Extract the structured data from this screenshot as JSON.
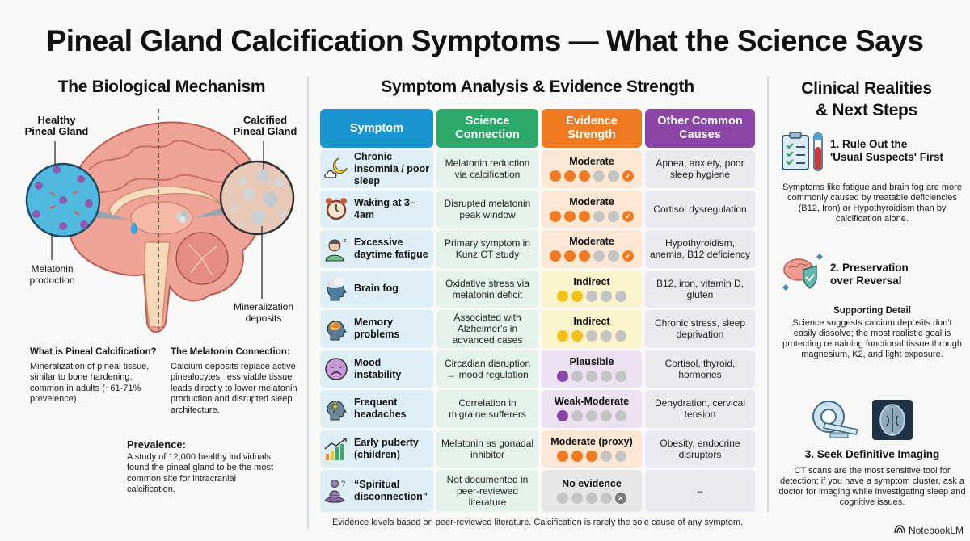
{
  "title": "Pineal Gland Calcification Symptoms — What the Science Says",
  "left": {
    "heading": "The Biological Mechanism",
    "diagram_labels": {
      "healthy": "Healthy\nPineal Gland",
      "healthy_line1": "Healthy",
      "healthy_line2": "Pineal Gland",
      "calcified_line1": "Calcified",
      "calcified_line2": "Pineal Gland",
      "melatonin_line1": "Melatonin",
      "melatonin_line2": "production",
      "mineral_line1": "Mineralization",
      "mineral_line2": "deposits"
    },
    "what_is": {
      "heading": "What is Pineal Calcification?",
      "text": "Mineralization of pineal tissue, similar to bone hardening, common in adults (~61-71% prevelence)."
    },
    "melatonin_connection": {
      "heading": "The Melatonin Connection:",
      "text": "Calcium deposits replace active pinealocytes; less viable tissue leads directly to lower melatonin production and disrupted sleep architecture."
    },
    "prevalence": {
      "heading": "Prevalence:",
      "text": "A study of 12,000 healthy individuals found the pineal gland to be the most common site for intracranial calcification."
    }
  },
  "middle": {
    "heading": "Symptom Analysis & Evidence Strength",
    "columns": [
      {
        "label": "Symptom",
        "color": "#1b95cf"
      },
      {
        "label": "Science Connection",
        "color": "#2aa96b"
      },
      {
        "label": "Evidence Strength",
        "color": "#ef7a22"
      },
      {
        "label": "Other Common Causes",
        "color": "#8a45a6"
      }
    ],
    "rows": [
      {
        "symptom": "Chronic insomnia / poor sleep",
        "icon": "moon-cloud-icon",
        "science": "Melatonin reduction via calcification",
        "evidence": "Moderate",
        "filled": 3,
        "total": 6,
        "end_mark": "check",
        "ev_color": "#ef7a22",
        "ev_bg": "#fbe7d4",
        "other": "Apnea, anxiety, poor sleep hygiene"
      },
      {
        "symptom": "Waking at 3–4am",
        "icon": "alarm-clock-icon",
        "science": "Disrupted melatonin peak window",
        "evidence": "Moderate",
        "filled": 3,
        "total": 6,
        "end_mark": "check",
        "ev_color": "#ef7a22",
        "ev_bg": "#fbe7d4",
        "other": "Cortisol dysregulation"
      },
      {
        "symptom": "Excessive daytime fatigue",
        "icon": "tired-person-icon",
        "science": "Primary symptom in Kunz CT study",
        "evidence": "Moderate",
        "filled": 3,
        "total": 6,
        "end_mark": "check",
        "ev_color": "#ef7a22",
        "ev_bg": "#fbe7d4",
        "other": "Hypothyroidism, anemia, B12 deficiency"
      },
      {
        "symptom": "Brain fog",
        "icon": "foggy-head-icon",
        "science": "Oxidative stress via melatonin deficit",
        "evidence": "Indirect",
        "filled": 2,
        "total": 5,
        "end_mark": "",
        "ev_color": "#f2c21b",
        "ev_bg": "#fbf3cc",
        "other": "B12, iron, vitamin D, gluten"
      },
      {
        "symptom": "Memory problems",
        "icon": "brain-head-icon",
        "science": "Associated with Alzheimer's in advanced cases",
        "evidence": "Indirect",
        "filled": 2,
        "total": 5,
        "end_mark": "",
        "ev_color": "#f2c21b",
        "ev_bg": "#fbf3cc",
        "other": "Chronic stress, sleep deprivation"
      },
      {
        "symptom": "Mood instability",
        "icon": "sad-face-icon",
        "science": "Circadian disruption → mood regulation",
        "evidence": "Plausible",
        "filled": 1,
        "total": 5,
        "end_mark": "",
        "ev_color": "#8a45a6",
        "ev_bg": "#ece0f1",
        "other": "Cortisol, thyroid, hormones"
      },
      {
        "symptom": "Frequent headaches",
        "icon": "headache-head-icon",
        "science": "Correlation in migraine sufferers",
        "evidence": "Weak-Moderate",
        "filled": 1,
        "total": 5,
        "end_mark": "",
        "ev_color": "#8a45a6",
        "ev_bg": "#ece0f1",
        "other": "Dehydration, cervical tension"
      },
      {
        "symptom": "Early puberty (children)",
        "icon": "growth-chart-icon",
        "science": "Melatonin as gonadal inhibitor",
        "evidence": "Moderate (proxy)",
        "filled": 3,
        "total": 5,
        "end_mark": "",
        "ev_color": "#ef7a22",
        "ev_bg": "#fbe7d4",
        "other": "Obesity, endocrine disruptors"
      },
      {
        "symptom": "“Spiritual disconnection”",
        "icon": "meditation-icon",
        "science": "Not documented in peer-reviewed literature",
        "evidence": "No evidence",
        "filled": 0,
        "total": 5,
        "end_mark": "x",
        "ev_color": "#888888",
        "ev_bg": "#e6e6e6",
        "other": "–"
      }
    ],
    "footnote": "Evidence levels based on peer-reviewed literature. Calcification is rarely the sole cause of any symptom."
  },
  "right": {
    "heading_line1": "Clinical Realities",
    "heading_line2": "& Next Steps",
    "steps": [
      {
        "title_line1": "1. Rule Out the",
        "title_line2": "'Usual Suspects' First",
        "text": "Symptoms like fatigue and brain fog are more commonly caused by treatable deficiencies (B12, Iron) or Hypothyroidism than by calcification alone."
      },
      {
        "title_line1": "2. Preservation",
        "title_line2": "over Reversal",
        "subheading": "Supporting Detail",
        "text": "Science suggests calcium deposits don't easily dissolve; the most realistic goal is protecting remaining functional tissue through magnesium, K2, and light exposure."
      },
      {
        "title": "3. Seek Definitive Imaging",
        "text": "CT scans are the most sensitive tool for detection; if you have a symptom cluster, ask a doctor for imaging while investigating sleep and cognitive issues."
      }
    ]
  },
  "brand": "NotebookLM"
}
